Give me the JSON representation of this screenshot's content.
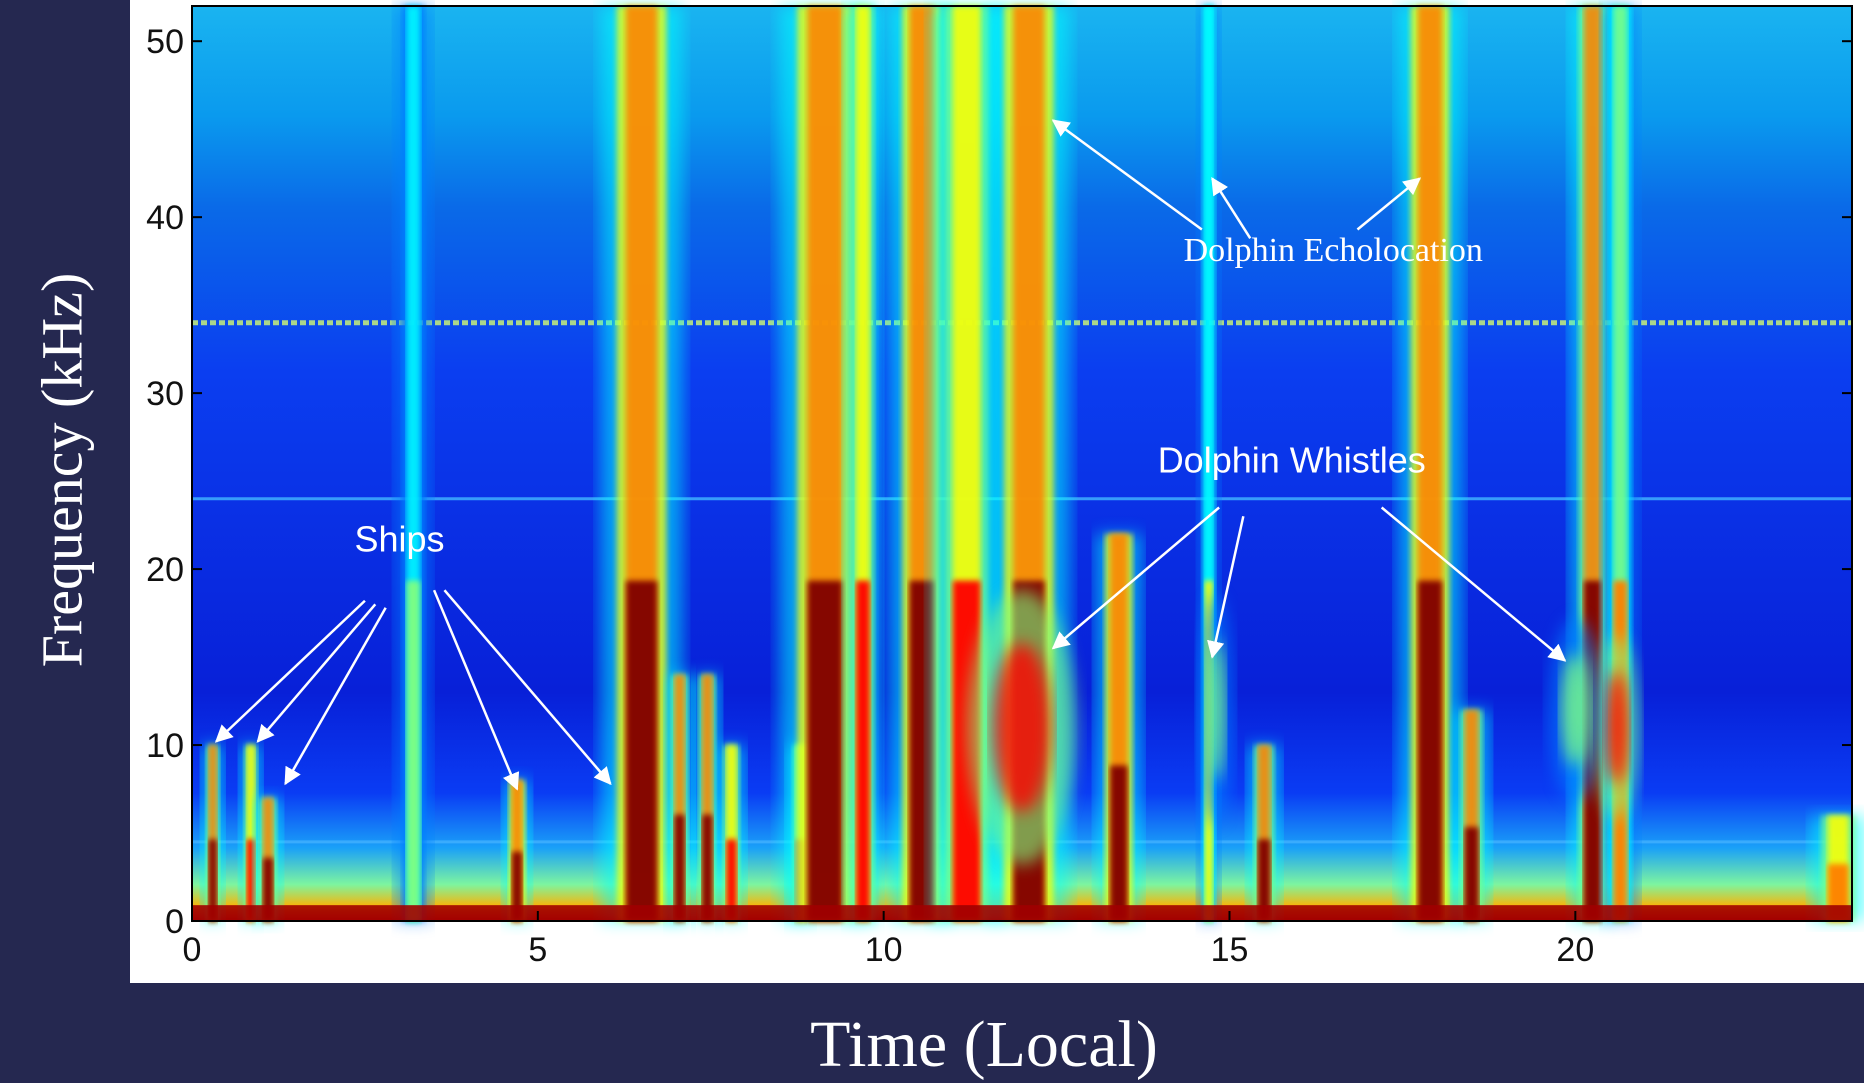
{
  "chart_data": {
    "type": "heatmap",
    "xlabel": "Time (Local)",
    "ylabel": "Frequency (kHz)",
    "xlim": [
      0,
      24
    ],
    "ylim": [
      0,
      52
    ],
    "x_ticks": [
      0,
      5,
      10,
      15,
      20
    ],
    "y_ticks": [
      0,
      10,
      20,
      30,
      40,
      50
    ],
    "colormap": [
      "#00008f",
      "#0000ff",
      "#0080ff",
      "#00ffff",
      "#80ff80",
      "#ffff00",
      "#ff8000",
      "#ff0000",
      "#800000"
    ],
    "noise_bands_khz": [
      34,
      24,
      4.5
    ],
    "events": [
      {
        "t": 0.3,
        "width": 0.12,
        "top_khz": 10,
        "level": 0.85
      },
      {
        "t": 0.85,
        "width": 0.12,
        "top_khz": 10,
        "level": 0.8
      },
      {
        "t": 1.1,
        "width": 0.15,
        "top_khz": 7,
        "level": 0.85
      },
      {
        "t": 3.2,
        "width": 0.2,
        "top_khz": 52,
        "level": 0.45
      },
      {
        "t": 4.7,
        "width": 0.15,
        "top_khz": 8,
        "level": 0.9
      },
      {
        "t": 6.5,
        "width": 0.45,
        "top_khz": 52,
        "level": 0.95
      },
      {
        "t": 7.05,
        "width": 0.15,
        "top_khz": 14,
        "level": 0.85
      },
      {
        "t": 7.45,
        "width": 0.15,
        "top_khz": 14,
        "level": 0.85
      },
      {
        "t": 7.8,
        "width": 0.15,
        "top_khz": 10,
        "level": 0.8
      },
      {
        "t": 8.8,
        "width": 0.15,
        "top_khz": 10,
        "level": 0.8
      },
      {
        "t": 9.15,
        "width": 0.5,
        "top_khz": 52,
        "level": 0.95
      },
      {
        "t": 9.7,
        "width": 0.2,
        "top_khz": 52,
        "level": 0.75
      },
      {
        "t": 10.55,
        "width": 0.35,
        "top_khz": 52,
        "level": 0.95
      },
      {
        "t": 11.2,
        "width": 0.4,
        "top_khz": 52,
        "level": 0.8
      },
      {
        "t": 12.1,
        "width": 0.45,
        "top_khz": 52,
        "level": 0.9
      },
      {
        "t": 13.4,
        "width": 0.25,
        "top_khz": 22,
        "level": 0.9
      },
      {
        "t": 14.7,
        "width": 0.12,
        "top_khz": 52,
        "level": 0.5
      },
      {
        "t": 15.5,
        "width": 0.18,
        "top_khz": 10,
        "level": 0.85
      },
      {
        "t": 17.9,
        "width": 0.35,
        "top_khz": 52,
        "level": 0.9
      },
      {
        "t": 18.5,
        "width": 0.2,
        "top_khz": 12,
        "level": 0.85
      },
      {
        "t": 20.25,
        "width": 0.25,
        "top_khz": 52,
        "level": 0.85
      },
      {
        "t": 20.65,
        "width": 0.2,
        "top_khz": 52,
        "level": 0.6
      },
      {
        "t": 23.8,
        "width": 0.3,
        "top_khz": 6,
        "level": 0.7
      }
    ],
    "blobs": [
      {
        "t": 12.0,
        "f": 11,
        "dt": 0.6,
        "df": 6,
        "level": 0.9
      },
      {
        "t": 20.6,
        "f": 11,
        "dt": 0.25,
        "df": 4,
        "level": 0.9
      },
      {
        "t": 20.0,
        "f": 12,
        "dt": 0.3,
        "df": 4,
        "level": 0.55
      },
      {
        "t": 14.8,
        "f": 12,
        "dt": 0.2,
        "df": 5,
        "level": 0.45
      }
    ],
    "annotations": [
      {
        "text": "Ships",
        "style": "sans",
        "label_at": {
          "t": 3.0,
          "f": 21
        },
        "arrows": [
          {
            "from": {
              "t": 2.5,
              "f": 18.2
            },
            "to": {
              "t": 0.35,
              "f": 10.2
            }
          },
          {
            "from": {
              "t": 2.65,
              "f": 18.0
            },
            "to": {
              "t": 0.95,
              "f": 10.2
            }
          },
          {
            "from": {
              "t": 2.8,
              "f": 17.8
            },
            "to": {
              "t": 1.35,
              "f": 7.8
            }
          },
          {
            "from": {
              "t": 3.5,
              "f": 18.8
            },
            "to": {
              "t": 4.7,
              "f": 7.5
            }
          },
          {
            "from": {
              "t": 3.65,
              "f": 18.8
            },
            "to": {
              "t": 6.05,
              "f": 7.8
            }
          }
        ]
      },
      {
        "text": "Dolphin Echolocation",
        "style": "serif",
        "label_at": {
          "t": 16.5,
          "f": 37.5
        },
        "arrows": [
          {
            "from": {
              "t": 14.6,
              "f": 39.3
            },
            "to": {
              "t": 12.45,
              "f": 45.5
            }
          },
          {
            "from": {
              "t": 15.3,
              "f": 38.8
            },
            "to": {
              "t": 14.75,
              "f": 42.2
            }
          },
          {
            "from": {
              "t": 16.85,
              "f": 39.3
            },
            "to": {
              "t": 17.75,
              "f": 42.2
            }
          }
        ]
      },
      {
        "text": "Dolphin Whistles",
        "style": "sans",
        "label_at": {
          "t": 15.9,
          "f": 25.5
        },
        "arrows": [
          {
            "from": {
              "t": 14.85,
              "f": 23.5
            },
            "to": {
              "t": 12.45,
              "f": 15.5
            }
          },
          {
            "from": {
              "t": 15.2,
              "f": 23.0
            },
            "to": {
              "t": 14.75,
              "f": 15.0
            }
          },
          {
            "from": {
              "t": 17.2,
              "f": 23.5
            },
            "to": {
              "t": 19.85,
              "f": 14.8
            }
          }
        ]
      }
    ]
  }
}
